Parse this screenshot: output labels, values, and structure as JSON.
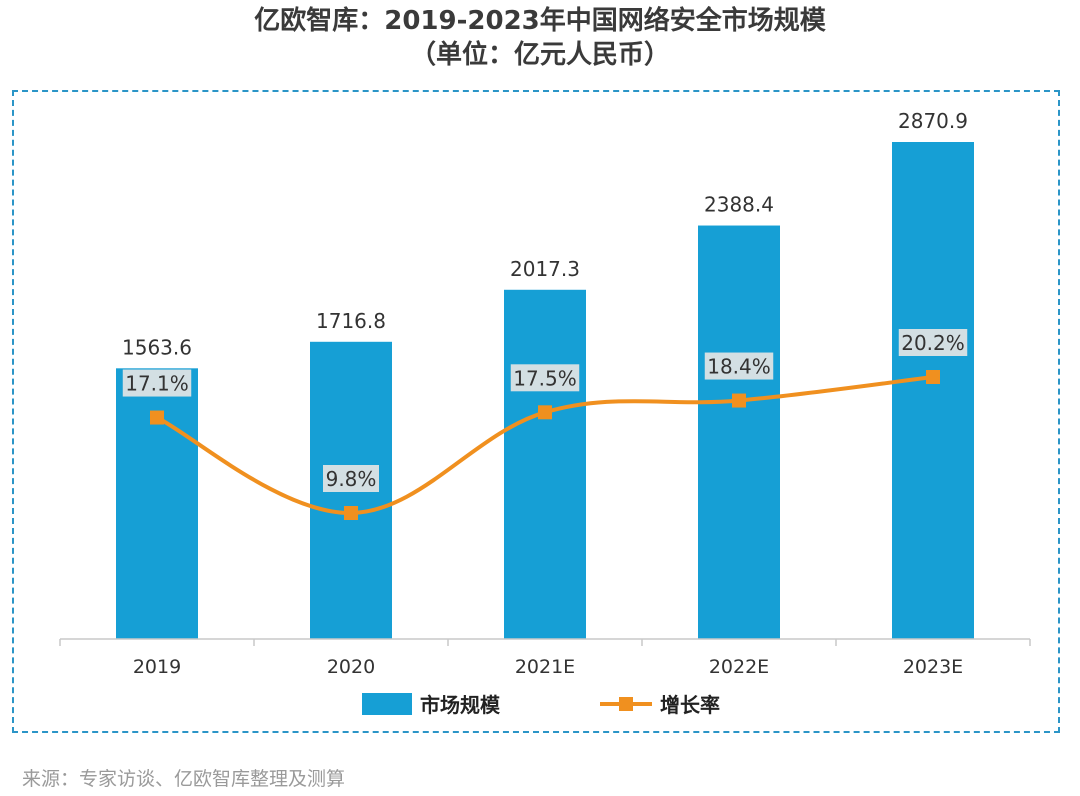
{
  "chart_data": {
    "type": "bar",
    "title": "亿欧智库：2019-2023年中国网络安全市场规模",
    "subtitle": "（单位：亿元人民币）",
    "categories": [
      "2019",
      "2020",
      "2021E",
      "2022E",
      "2023E"
    ],
    "series": [
      {
        "name": "市场规模",
        "type": "bar",
        "values": [
          1563.6,
          1716.8,
          2017.3,
          2388.4,
          2870.9
        ],
        "labels": [
          "1563.6",
          "1716.8",
          "2017.3",
          "2388.4",
          "2870.9"
        ],
        "color": "#169fd5"
      },
      {
        "name": "增长率",
        "type": "line",
        "values": [
          17.1,
          9.8,
          17.5,
          18.4,
          20.2
        ],
        "labels": [
          "17.1%",
          "9.8%",
          "17.5%",
          "18.4%",
          "20.2%"
        ],
        "color": "#f0901f"
      }
    ],
    "xlabel": "",
    "ylabel": "",
    "grid": false,
    "legend": "bottom-center",
    "source": "来源：专家访谈、亿欧智库整理及测算"
  }
}
